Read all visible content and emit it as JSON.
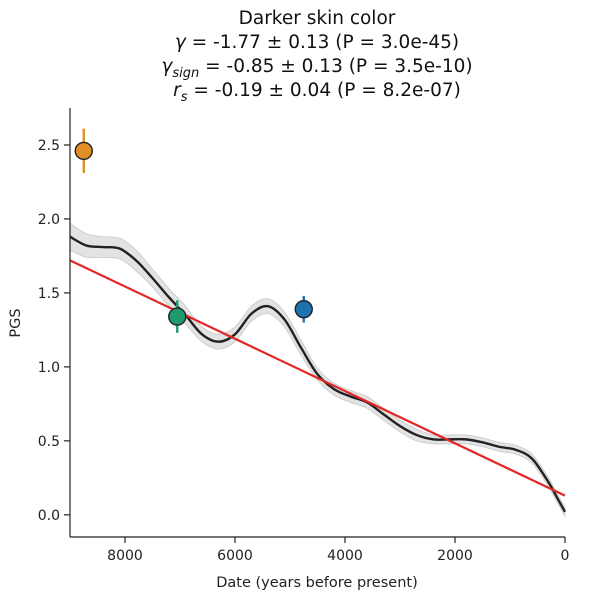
{
  "chart_data": {
    "type": "line",
    "title": "Darker skin color",
    "stats": [
      {
        "symbol": "γ",
        "sub": "",
        "text": " = -1.77 ± 0.13 (P = 3.0e-45)"
      },
      {
        "symbol": "γ",
        "sub": "sign",
        "text": " = -0.85 ± 0.13 (P = 3.5e-10)"
      },
      {
        "symbol": "r",
        "sub": "s",
        "text": " = -0.19 ± 0.04 (P = 8.2e-07)"
      }
    ],
    "xlabel": "Date (years before present)",
    "ylabel": "PGS",
    "xlim": [
      9000,
      0
    ],
    "ylim": [
      -0.15,
      2.75
    ],
    "x_reversed": true,
    "x_ticks": [
      8000,
      6000,
      4000,
      2000,
      0
    ],
    "x_tick_labels": [
      "8000",
      "6000",
      "4000",
      "2000",
      "0"
    ],
    "y_ticks": [
      0.0,
      0.5,
      1.0,
      1.5,
      2.0,
      2.5
    ],
    "y_tick_labels": [
      "0.0",
      "0.5",
      "1.0",
      "1.5",
      "2.0",
      "2.5"
    ],
    "grid": false,
    "smooth_curve": {
      "x": [
        9000,
        8700,
        8400,
        8100,
        7800,
        7500,
        7200,
        6900,
        6600,
        6300,
        6000,
        5700,
        5400,
        5100,
        4800,
        4500,
        4200,
        3900,
        3600,
        3300,
        3000,
        2700,
        2400,
        2100,
        1800,
        1500,
        1200,
        900,
        600,
        300,
        150,
        0
      ],
      "y": [
        1.88,
        1.82,
        1.81,
        1.8,
        1.72,
        1.6,
        1.47,
        1.35,
        1.22,
        1.17,
        1.22,
        1.36,
        1.41,
        1.32,
        1.13,
        0.95,
        0.85,
        0.8,
        0.76,
        0.68,
        0.6,
        0.54,
        0.51,
        0.51,
        0.51,
        0.49,
        0.46,
        0.44,
        0.38,
        0.22,
        0.12,
        0.02
      ],
      "band": [
        0.09,
        0.08,
        0.07,
        0.07,
        0.07,
        0.06,
        0.06,
        0.06,
        0.05,
        0.05,
        0.05,
        0.05,
        0.05,
        0.05,
        0.05,
        0.04,
        0.04,
        0.04,
        0.04,
        0.04,
        0.04,
        0.04,
        0.03,
        0.03,
        0.03,
        0.03,
        0.03,
        0.03,
        0.03,
        0.03,
        0.03,
        0.03
      ],
      "color": "#222222",
      "band_color": "#d9d9d9"
    },
    "regression": {
      "x": [
        9000,
        0
      ],
      "y": [
        1.72,
        0.13
      ],
      "color": "#e32727"
    },
    "points": [
      {
        "x": 8750,
        "y": 2.46,
        "err": 0.15,
        "color": "#e08e25"
      },
      {
        "x": 7050,
        "y": 1.34,
        "err": 0.11,
        "color": "#1e9b6e"
      },
      {
        "x": 4750,
        "y": 1.39,
        "err": 0.09,
        "color": "#1f72b0"
      }
    ]
  }
}
